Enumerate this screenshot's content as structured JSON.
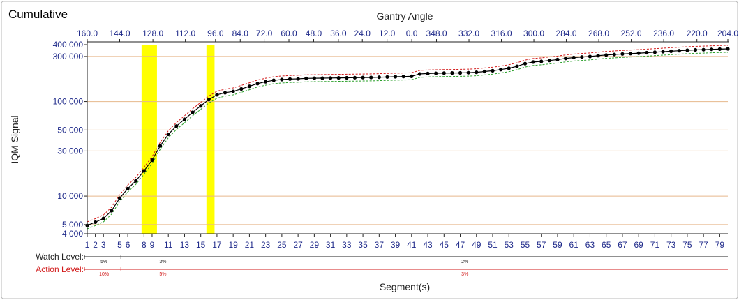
{
  "chart_data": {
    "type": "line",
    "title": "Cumulative",
    "xlabel": "Segment(s)",
    "x2label": "Gantry Angle",
    "ylabel": "IQM Signal",
    "yscale": "log",
    "ylim": [
      4000,
      400000
    ],
    "xlim": [
      1,
      80
    ],
    "y_ticks": [
      {
        "value": 4000,
        "label": "4 000"
      },
      {
        "value": 5000,
        "label": "5 000"
      },
      {
        "value": 10000,
        "label": "10 000"
      },
      {
        "value": 30000,
        "label": "30 000"
      },
      {
        "value": 50000,
        "label": "50 000"
      },
      {
        "value": 100000,
        "label": "100 000"
      },
      {
        "value": 300000,
        "label": "300 000"
      },
      {
        "value": 400000,
        "label": "400 000"
      }
    ],
    "x_ticks": [
      {
        "value": 1,
        "label": "1"
      },
      {
        "value": 2,
        "label": "2"
      },
      {
        "value": 3,
        "label": "3"
      },
      {
        "value": 5,
        "label": "5"
      },
      {
        "value": 6,
        "label": "6"
      },
      {
        "value": 8,
        "label": "8"
      },
      {
        "value": 9,
        "label": "9"
      },
      {
        "value": 11,
        "label": "11"
      },
      {
        "value": 13,
        "label": "13"
      },
      {
        "value": 15,
        "label": "15"
      },
      {
        "value": 17,
        "label": "17"
      },
      {
        "value": 19,
        "label": "19"
      },
      {
        "value": 21,
        "label": "21"
      },
      {
        "value": 23,
        "label": "23"
      },
      {
        "value": 25,
        "label": "25"
      },
      {
        "value": 27,
        "label": "27"
      },
      {
        "value": 29,
        "label": "29"
      },
      {
        "value": 31,
        "label": "31"
      },
      {
        "value": 33,
        "label": "33"
      },
      {
        "value": 35,
        "label": "35"
      },
      {
        "value": 37,
        "label": "37"
      },
      {
        "value": 39,
        "label": "39"
      },
      {
        "value": 41,
        "label": "41"
      },
      {
        "value": 43,
        "label": "43"
      },
      {
        "value": 45,
        "label": "45"
      },
      {
        "value": 47,
        "label": "47"
      },
      {
        "value": 49,
        "label": "49"
      },
      {
        "value": 51,
        "label": "51"
      },
      {
        "value": 53,
        "label": "53"
      },
      {
        "value": 55,
        "label": "55"
      },
      {
        "value": 57,
        "label": "57"
      },
      {
        "value": 59,
        "label": "59"
      },
      {
        "value": 61,
        "label": "61"
      },
      {
        "value": 63,
        "label": "63"
      },
      {
        "value": 65,
        "label": "65"
      },
      {
        "value": 67,
        "label": "67"
      },
      {
        "value": 69,
        "label": "69"
      },
      {
        "value": 71,
        "label": "71"
      },
      {
        "value": 73,
        "label": "73"
      },
      {
        "value": 75,
        "label": "75"
      },
      {
        "value": 77,
        "label": "77"
      },
      {
        "value": 79,
        "label": "79"
      }
    ],
    "x2_ticks": [
      {
        "value": 1,
        "label": "160.0"
      },
      {
        "value": 5.2,
        "label": "144.0"
      },
      {
        "value": 9.5,
        "label": "128.0"
      },
      {
        "value": 13.7,
        "label": "112.0"
      },
      {
        "value": 17.6,
        "label": "96.0"
      },
      {
        "value": 20.8,
        "label": "84.0"
      },
      {
        "value": 23.9,
        "label": "72.0"
      },
      {
        "value": 27.1,
        "label": "60.0"
      },
      {
        "value": 30.3,
        "label": "48.0"
      },
      {
        "value": 33.5,
        "label": "36.0"
      },
      {
        "value": 36.6,
        "label": "24.0"
      },
      {
        "value": 39.8,
        "label": "12.0"
      },
      {
        "value": 43.0,
        "label": "0.0"
      },
      {
        "value": 46.2,
        "label": "348.0"
      },
      {
        "value": 50.4,
        "label": "332.0"
      },
      {
        "value": 54.6,
        "label": "316.0"
      },
      {
        "value": 58.8,
        "label": "300.0"
      },
      {
        "value": 63.0,
        "label": "284.0"
      },
      {
        "value": 67.2,
        "label": "268.0"
      },
      {
        "value": 71.4,
        "label": "252.0"
      },
      {
        "value": 75.6,
        "label": "236.0"
      },
      {
        "value": 79.9,
        "label": "220.0"
      },
      {
        "value": 83.9,
        "label": "204.0"
      }
    ],
    "highlight_bands": [
      {
        "from": 7.7,
        "to": 9.6,
        "color": "#ffff00"
      },
      {
        "from": 15.7,
        "to": 16.7,
        "color": "#ffff00"
      }
    ],
    "series": [
      {
        "color": "#000000",
        "marker": "circle",
        "x": [
          1,
          2,
          3,
          4,
          5,
          6,
          7,
          8,
          9,
          10,
          11,
          12,
          13,
          14,
          15,
          16,
          17,
          18,
          19,
          20,
          21,
          22,
          23,
          24,
          25,
          26,
          27,
          28,
          29,
          30,
          31,
          32,
          33,
          34,
          35,
          36,
          37,
          38,
          39,
          40,
          41,
          42,
          43,
          44,
          45,
          46,
          47,
          48,
          49,
          50,
          51,
          52,
          53,
          54,
          55,
          56,
          57,
          58,
          59,
          60,
          61,
          62,
          63,
          64,
          65,
          66,
          67,
          68,
          69,
          70,
          71,
          72,
          73,
          74,
          75,
          76,
          77,
          78,
          79,
          80
        ],
        "y": [
          4900,
          5300,
          5800,
          7000,
          9500,
          12000,
          14500,
          18500,
          24000,
          34000,
          45000,
          55000,
          65000,
          77000,
          90000,
          105000,
          118000,
          124000,
          128000,
          136000,
          145000,
          155000,
          162000,
          168000,
          171000,
          173000,
          174000,
          176000,
          176500,
          177000,
          177500,
          178000,
          178500,
          179000,
          179500,
          180000,
          181000,
          182000,
          183000,
          184000,
          185000,
          196000,
          198000,
          199000,
          200000,
          200500,
          201000,
          202000,
          204000,
          208000,
          212000,
          218000,
          225000,
          236000,
          252000,
          262000,
          266000,
          272000,
          278000,
          286000,
          292000,
          296000,
          300000,
          306000,
          311000,
          315000,
          319000,
          322000,
          325000,
          329000,
          333000,
          337000,
          341000,
          345000,
          349000,
          352000,
          354000,
          357000,
          359000,
          361000
        ]
      }
    ],
    "band_colors": {
      "upper": "#d21a1a",
      "lower": "#2aa02a"
    },
    "watch_level": {
      "label": "Watch Level:",
      "segments": [
        {
          "from": 1,
          "to": 5.5,
          "value": "5%"
        },
        {
          "from": 5.5,
          "to": 15.5,
          "value": "3%"
        },
        {
          "from": 15.5,
          "to": 80,
          "value": "2%"
        }
      ],
      "color": "#222222"
    },
    "action_level": {
      "label": "Action Level:",
      "segments": [
        {
          "from": 1,
          "to": 5.5,
          "value": "10%"
        },
        {
          "from": 5.5,
          "to": 15.5,
          "value": "5%"
        },
        {
          "from": 15.5,
          "to": 80,
          "value": "3%"
        }
      ],
      "color": "#d21a1a"
    }
  }
}
